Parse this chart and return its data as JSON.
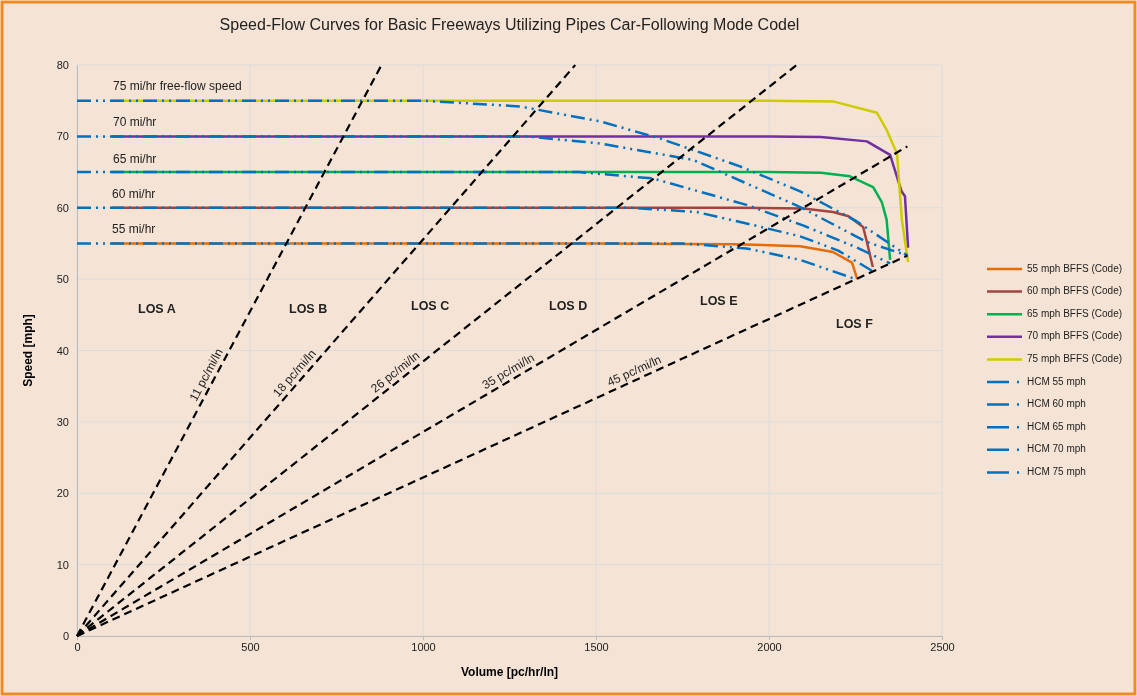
{
  "chart_data": {
    "type": "line",
    "title": "Speed-Flow Curves for Basic Freeways Utilizing Pipes Car-Following Mode Codel",
    "xlabel": "Volume [pc/hr/ln]",
    "ylabel": "Speed [mph]",
    "xlim": [
      0,
      2500
    ],
    "ylim": [
      0,
      80
    ],
    "xticks": [
      0,
      500,
      1000,
      1500,
      2000,
      2500
    ],
    "yticks": [
      0,
      10,
      20,
      30,
      40,
      50,
      60,
      70,
      80
    ],
    "grid": true,
    "legend": "right",
    "marker": "none",
    "series": [
      {
        "name": "55 mph BFFS (Code)",
        "color": "#e46c0a",
        "line_style": "solid",
        "x": [
          100,
          1500,
          1900,
          2090,
          2185,
          2240,
          2255
        ],
        "values": [
          55,
          55,
          54.9,
          54.6,
          53.8,
          52.3,
          50
        ]
      },
      {
        "name": "60 mph BFFS (Code)",
        "color": "#a5443f",
        "line_style": "solid",
        "x": [
          100,
          1900,
          2100,
          2185,
          2230,
          2272,
          2283,
          2300
        ],
        "values": [
          60,
          60,
          59.9,
          59.4,
          58.8,
          57.3,
          55.2,
          51.7
        ]
      },
      {
        "name": "65 mph BFFS (Code)",
        "color": "#00b050",
        "line_style": "solid",
        "x": [
          100,
          2000,
          2150,
          2234,
          2301,
          2326,
          2340,
          2350
        ],
        "values": [
          65,
          65,
          64.9,
          64.4,
          62.9,
          60.8,
          58.3,
          52.7
        ]
      },
      {
        "name": "70 mph BFFS (Code)",
        "color": "#7030a0",
        "line_style": "solid",
        "x": [
          100,
          2000,
          2150,
          2283,
          2350,
          2383,
          2393,
          2402
        ],
        "values": [
          70,
          70,
          69.9,
          69.3,
          67.4,
          62.3,
          61.6,
          54.4
        ]
      },
      {
        "name": "75 mph BFFS (Code)",
        "color": "#cccc00",
        "line_style": "solid",
        "x": [
          100,
          2000,
          2185,
          2312,
          2340,
          2370,
          2384,
          2402
        ],
        "values": [
          75,
          75,
          74.9,
          73.3,
          70.9,
          67.6,
          58.3,
          52.4
        ]
      },
      {
        "name": "HCM 55 mph",
        "color": "#0070c0",
        "line_style": "dotted",
        "x": [
          0,
          1750,
          1935,
          2090,
          2250
        ],
        "values": [
          55,
          55,
          54.3,
          52.7,
          50
        ]
      },
      {
        "name": "HCM 60 mph",
        "color": "#0070c0",
        "line_style": "dotted",
        "x": [
          0,
          1600,
          1791,
          1935,
          2090,
          2200,
          2300
        ],
        "values": [
          60,
          60,
          59.4,
          57.8,
          56,
          54,
          51.1
        ]
      },
      {
        "name": "HCM 65 mph",
        "color": "#0070c0",
        "line_style": "dotted",
        "x": [
          0,
          1450,
          1665,
          1935,
          2100,
          2250,
          2350
        ],
        "values": [
          65,
          65,
          64.1,
          60.4,
          57.5,
          54.5,
          52.2
        ]
      },
      {
        "name": "HCM 70 mph",
        "color": "#0070c0",
        "line_style": "dotted",
        "x": [
          0,
          1300,
          1512,
          1781,
          2090,
          2283,
          2400
        ],
        "values": [
          70,
          70,
          69,
          66.7,
          60.1,
          55.2,
          53.3
        ]
      },
      {
        "name": "HCM 75 mph",
        "color": "#0070c0",
        "line_style": "dotted",
        "x": [
          0,
          1000,
          1280,
          1512,
          1685,
          1916,
          2090,
          2250,
          2400
        ],
        "values": [
          75,
          75,
          74.2,
          72.1,
          69.7,
          65.8,
          62.3,
          58.2,
          53.3
        ]
      },
      {
        "name": "11 pc/mi/ln",
        "color": "#000000",
        "line_style": "dashed",
        "x": [
          0,
          880
        ],
        "values": [
          0,
          80
        ]
      },
      {
        "name": "18 pc/mi/ln",
        "color": "#000000",
        "line_style": "dashed",
        "x": [
          0,
          1440
        ],
        "values": [
          0,
          80
        ]
      },
      {
        "name": "26 pc/mi/ln",
        "color": "#000000",
        "line_style": "dashed",
        "x": [
          0,
          2080
        ],
        "values": [
          0,
          80
        ]
      },
      {
        "name": "35 pc/mi/ln",
        "color": "#000000",
        "line_style": "dashed",
        "x": [
          0,
          2400
        ],
        "values": [
          0,
          68.6
        ]
      },
      {
        "name": "45 pc/mi/ln",
        "color": "#000000",
        "line_style": "dashed",
        "x": [
          0,
          2400
        ],
        "values": [
          0,
          53.3
        ]
      }
    ],
    "annotations": [
      "75 mi/hr free-flow speed",
      "70 mi/hr",
      "65 mi/hr",
      "60 mi/hr",
      "55 mi/hr",
      "LOS A",
      "LOS B",
      "LOS C",
      "LOS D",
      "LOS E",
      "LOS F"
    ]
  }
}
